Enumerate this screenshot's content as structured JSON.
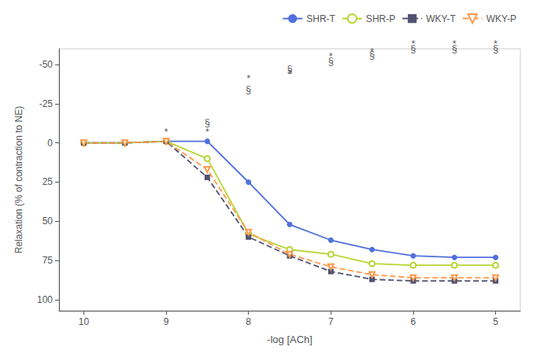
{
  "chart_data": {
    "type": "line",
    "x": [
      10,
      9.5,
      9,
      8.5,
      8,
      7.5,
      7,
      6.5,
      6,
      5.5,
      5
    ],
    "series": [
      {
        "name": "SHR-T",
        "values": [
          0,
          0,
          -1,
          -1,
          25,
          52,
          62,
          68,
          72,
          73,
          73
        ],
        "marker": "circle",
        "line_style": "solid"
      },
      {
        "name": "SHR-P",
        "values": [
          0,
          0,
          -1,
          10,
          58,
          68,
          71,
          77,
          78,
          78,
          78
        ],
        "marker": "open_circle",
        "line_style": "solid"
      },
      {
        "name": "WKY-T",
        "values": [
          0,
          0,
          -1,
          22,
          60,
          72,
          82,
          87,
          88,
          88,
          88
        ],
        "marker": "square",
        "line_style": "dashed"
      },
      {
        "name": "WKY-P",
        "values": [
          0,
          0,
          -1,
          17,
          57,
          71,
          79,
          84,
          86,
          86,
          86
        ],
        "marker": "open_triangle_down",
        "line_style": "dashed"
      }
    ],
    "annotations": [
      {
        "text": "§",
        "x": 8.5,
        "y": -10
      },
      {
        "text": "§",
        "x": 8,
        "y": -31
      },
      {
        "text": "§",
        "x": 7.5,
        "y": -44
      },
      {
        "text": "§",
        "x": 7,
        "y": -49
      },
      {
        "text": "§",
        "x": 6.5,
        "y": -53
      },
      {
        "text": "§",
        "x": 6,
        "y": -57
      },
      {
        "text": "§",
        "x": 5.5,
        "y": -57
      },
      {
        "text": "§",
        "x": 5,
        "y": -57
      },
      {
        "text": "*",
        "x": 9,
        "y": -4
      },
      {
        "text": "*",
        "x": 8.5,
        "y": -4
      },
      {
        "text": "*",
        "x": 8,
        "y": -38
      },
      {
        "text": "*",
        "x": 7.5,
        "y": -41
      },
      {
        "text": "*",
        "x": 7,
        "y": -52
      },
      {
        "text": "*",
        "x": 6.5,
        "y": -55
      },
      {
        "text": "*",
        "x": 6,
        "y": -60
      },
      {
        "text": "*",
        "x": 5.5,
        "y": -60
      },
      {
        "text": "*",
        "x": 5,
        "y": -60
      }
    ],
    "xlabel": "-log [ACh]",
    "ylabel": "Relaxation (% of contraction to NE)",
    "xlim": [
      10.3,
      4.7
    ],
    "ylim": [
      107,
      -60
    ],
    "xticks": [
      10,
      9,
      8,
      7,
      6,
      5
    ],
    "yticks": [
      -50,
      -25,
      0,
      25,
      50,
      75,
      100
    ],
    "legend": "upper right",
    "grid": false
  }
}
